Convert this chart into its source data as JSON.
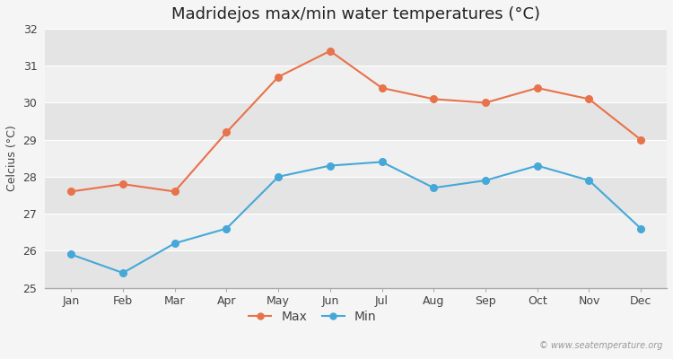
{
  "title": "Madridejos max/min water temperatures (°C)",
  "ylabel": "Celcius (°C)",
  "months": [
    "Jan",
    "Feb",
    "Mar",
    "Apr",
    "May",
    "Jun",
    "Jul",
    "Aug",
    "Sep",
    "Oct",
    "Nov",
    "Dec"
  ],
  "max_temps": [
    27.6,
    27.8,
    27.6,
    29.2,
    30.7,
    31.4,
    30.4,
    30.1,
    30.0,
    30.4,
    30.1,
    29.0
  ],
  "min_temps": [
    25.9,
    25.4,
    26.2,
    26.6,
    28.0,
    28.3,
    28.4,
    27.7,
    27.9,
    28.3,
    27.9,
    26.6
  ],
  "max_color": "#e8724a",
  "min_color": "#45a8d8",
  "bg_color": "#f5f5f5",
  "plot_bg_color_light": "#f0f0f0",
  "plot_bg_color_dark": "#e4e4e4",
  "grid_color": "#ffffff",
  "ylim": [
    25,
    32
  ],
  "yticks": [
    25,
    26,
    27,
    28,
    29,
    30,
    31,
    32
  ],
  "legend_labels": [
    "Max",
    "Min"
  ],
  "watermark": "© www.seatemperature.org",
  "title_fontsize": 13,
  "label_fontsize": 9,
  "tick_fontsize": 9,
  "legend_fontsize": 10
}
